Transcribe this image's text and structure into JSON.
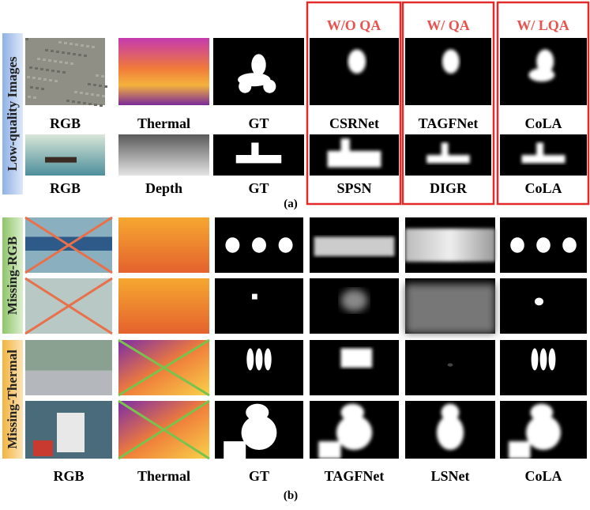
{
  "panel_a": {
    "side_label": "Low-quality Images",
    "group_headers": [
      "W/O QA",
      "W/ QA",
      "W/ LQA"
    ],
    "row1_labels": [
      "RGB",
      "Thermal",
      "GT",
      "CSRNet",
      "TAGFNet",
      "CoLA"
    ],
    "row2_labels": [
      "RGB",
      "Depth",
      "GT",
      "SPSN",
      "DIGR",
      "CoLA"
    ],
    "caption": "(a)"
  },
  "panel_b": {
    "side_labels": [
      "Missing-RGB",
      "Missing-Thermal"
    ],
    "column_labels": [
      "RGB",
      "Thermal",
      "GT",
      "TAGFNet",
      "LSNet",
      "CoLA"
    ],
    "caption": "(b)"
  }
}
